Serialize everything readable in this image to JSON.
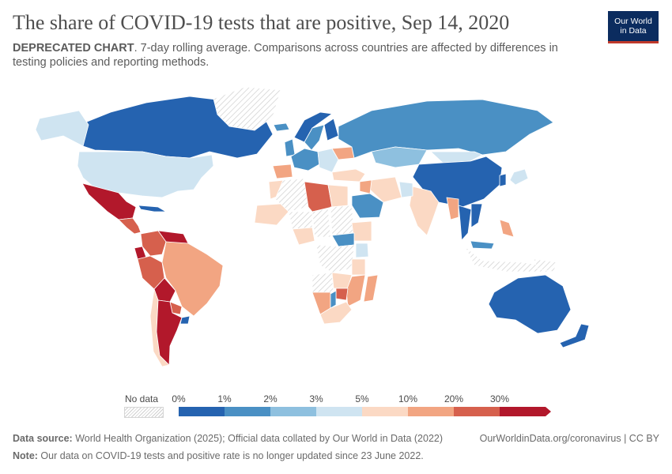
{
  "header": {
    "title": "The share of COVID-19 tests that are positive, Sep 14, 2020",
    "subtitle_bold": "DEPRECATED CHART",
    "subtitle_rest": ". 7-day rolling average. Comparisons across countries are affected by differences in testing policies and reporting methods.",
    "logo_line1": "Our World",
    "logo_line2": "in Data"
  },
  "legend": {
    "no_data_label": "No data",
    "ticks": [
      "0%",
      "1%",
      "2%",
      "3%",
      "5%",
      "10%",
      "20%",
      "30%"
    ],
    "colors": [
      "#2563b0",
      "#4a90c4",
      "#8ec0df",
      "#cfe4f1",
      "#fbd9c4",
      "#f2a582",
      "#d6604d",
      "#b2182b"
    ]
  },
  "footer": {
    "source_label": "Data source:",
    "source_text": " World Health Organization (2025); Official data collated by Our World in Data (2022)",
    "url_text": "OurWorldinData.org/coronavirus | CC BY",
    "note_label": "Note:",
    "note_text": " Our data on COVID-19 tests and positive rate is no longer updated since 23 June 2022."
  },
  "map_data": {
    "regions": [
      {
        "name": "Canada",
        "bin": 0
      },
      {
        "name": "Alaska",
        "bin": 3
      },
      {
        "name": "Greenland",
        "bin": -1
      },
      {
        "name": "United States",
        "bin": 3
      },
      {
        "name": "Mexico",
        "bin": 7
      },
      {
        "name": "Central America",
        "bin": 6
      },
      {
        "name": "Cuba",
        "bin": 0
      },
      {
        "name": "Colombia",
        "bin": 6
      },
      {
        "name": "Venezuela",
        "bin": 7
      },
      {
        "name": "Ecuador",
        "bin": 7
      },
      {
        "name": "Peru",
        "bin": 6
      },
      {
        "name": "Brazil",
        "bin": 5
      },
      {
        "name": "Bolivia",
        "bin": 7
      },
      {
        "name": "Paraguay",
        "bin": 6
      },
      {
        "name": "Chile",
        "bin": 4
      },
      {
        "name": "Argentina",
        "bin": 7
      },
      {
        "name": "Uruguay",
        "bin": 0
      },
      {
        "name": "Iceland",
        "bin": 1
      },
      {
        "name": "Norway",
        "bin": 0
      },
      {
        "name": "Sweden",
        "bin": 1
      },
      {
        "name": "Finland",
        "bin": 0
      },
      {
        "name": "United Kingdom",
        "bin": 1
      },
      {
        "name": "Western Europe",
        "bin": 1
      },
      {
        "name": "Spain",
        "bin": 5
      },
      {
        "name": "Eastern Europe",
        "bin": 3
      },
      {
        "name": "Ukraine",
        "bin": 5
      },
      {
        "name": "Russia",
        "bin": 1
      },
      {
        "name": "Kazakhstan",
        "bin": 2
      },
      {
        "name": "Mongolia",
        "bin": 3
      },
      {
        "name": "China",
        "bin": 0
      },
      {
        "name": "Japan",
        "bin": 3
      },
      {
        "name": "Korea",
        "bin": 0
      },
      {
        "name": "Turkey",
        "bin": 4
      },
      {
        "name": "Iran",
        "bin": 4
      },
      {
        "name": "Iraq",
        "bin": 5
      },
      {
        "name": "Saudi Arabia",
        "bin": 1
      },
      {
        "name": "India",
        "bin": 4
      },
      {
        "name": "Pakistan",
        "bin": 3
      },
      {
        "name": "Myanmar",
        "bin": 5
      },
      {
        "name": "Thailand",
        "bin": 0
      },
      {
        "name": "Vietnam",
        "bin": 0
      },
      {
        "name": "Philippines",
        "bin": 5
      },
      {
        "name": "Malaysia",
        "bin": 1
      },
      {
        "name": "Indonesia",
        "bin": -1
      },
      {
        "name": "Australia",
        "bin": 0
      },
      {
        "name": "New Zealand",
        "bin": 0
      },
      {
        "name": "Papua New Guinea",
        "bin": -1
      },
      {
        "name": "Morocco",
        "bin": 4
      },
      {
        "name": "Algeria",
        "bin": -1
      },
      {
        "name": "Libya",
        "bin": 6
      },
      {
        "name": "Egypt",
        "bin": 4
      },
      {
        "name": "Mali",
        "bin": 4
      },
      {
        "name": "Niger",
        "bin": -1
      },
      {
        "name": "Chad",
        "bin": -1
      },
      {
        "name": "Sudan",
        "bin": -1
      },
      {
        "name": "Ethiopia",
        "bin": 4
      },
      {
        "name": "Nigeria",
        "bin": 4
      },
      {
        "name": "Central Africa",
        "bin": 1
      },
      {
        "name": "Kenya",
        "bin": 3
      },
      {
        "name": "DR Congo",
        "bin": -1
      },
      {
        "name": "Tanzania",
        "bin": 4
      },
      {
        "name": "Angola",
        "bin": -1
      },
      {
        "name": "Zambia",
        "bin": 4
      },
      {
        "name": "Mozambique",
        "bin": 5
      },
      {
        "name": "Namibia",
        "bin": 5
      },
      {
        "name": "Zimbabwe",
        "bin": 6
      },
      {
        "name": "Botswana",
        "bin": 1
      },
      {
        "name": "South Africa",
        "bin": 4
      },
      {
        "name": "Madagascar",
        "bin": 5
      }
    ]
  }
}
